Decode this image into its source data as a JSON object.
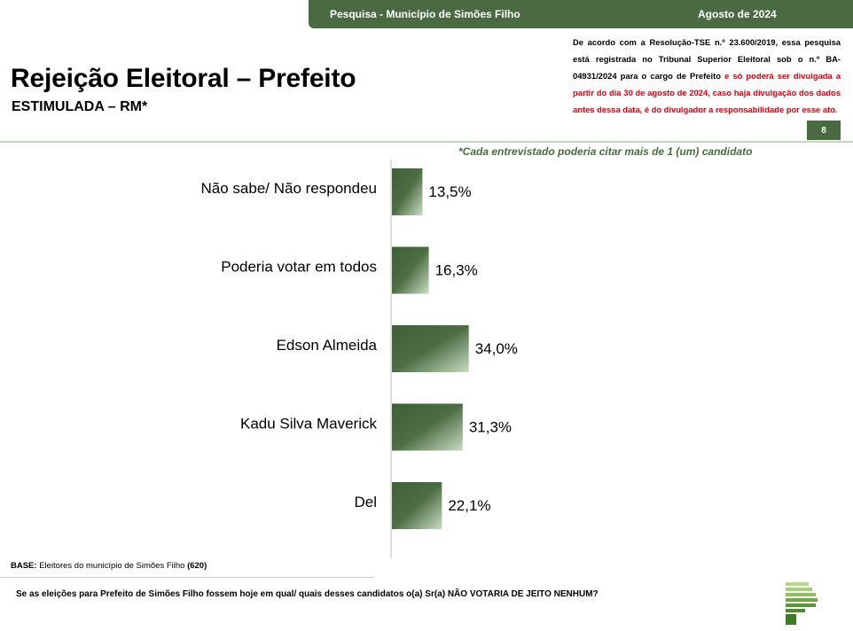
{
  "header": {
    "survey": "Pesquisa - Município de Simões Filho",
    "date": "Agosto de 2024"
  },
  "title": "Rejeição Eleitoral – Prefeito",
  "subtitle": "ESTIMULADA – RM*",
  "notice": {
    "part1": "De acordo com a Resolução-TSE n.º 23.600/2019, essa pesquisa está registrada no Tribunal Superior Eleitoral sob o n.º BA-04931/2024 para o cargo de Prefeito",
    "part2": " e só poderá ser divulgada a partir do dia 30 de agosto de 2024, caso haja divulgação dos dados antes dessa data, é do divulgador a responsabilidade por esse ato."
  },
  "page_number": "8",
  "footnote": "*Cada entrevistado poderia citar mais de 1 (um) candidato",
  "base": {
    "label": "BASE:",
    "text": " Eleitores do município de Simões Filho ",
    "count": "(620)"
  },
  "question": "Se as eleições para Prefeito de Simões Filho fossem hoje em qual/ quais desses candidatos o(a) Sr(a) NÃO VOTARIA DE JEITO NENHUM?",
  "colors": {
    "brand": "#4a6b42",
    "notice_red": "#e0000f",
    "bar_dark": "#3f5f37",
    "bar_light": "#c9dcc3"
  },
  "logo": "brand-logo-stripes",
  "chart_data": {
    "type": "bar",
    "orientation": "horizontal",
    "categories": [
      "Não sabe/ Não respondeu",
      "Poderia votar em todos",
      "Edson Almeida",
      "Kadu Silva Maverick",
      "Del"
    ],
    "values": [
      13.5,
      16.3,
      34.0,
      31.3,
      22.1
    ],
    "value_labels": [
      "13,5%",
      "16,3%",
      "34,0%",
      "31,3%",
      "22,1%"
    ],
    "unit": "%",
    "grid": false,
    "legend": "none"
  }
}
